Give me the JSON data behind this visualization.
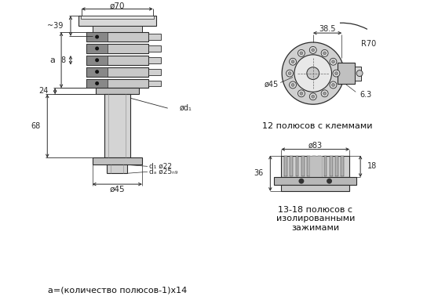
{
  "bg_color": "#ffffff",
  "line_color": "#2a2a2a",
  "dim_color": "#2a2a2a",
  "fig_width": 5.58,
  "fig_height": 3.83,
  "annotations": {
    "bottom_text": "a=(количество полюсов-1)x14",
    "top_right_label1": "12 полюсов с клеммами",
    "bottom_right_label": "13-18 полюсов с\nизолированными\nзажимами"
  },
  "dimensions": {
    "phi70": "ø70",
    "tilde39": "~39",
    "a_label": "a",
    "b_label": "8",
    "dim24": "24",
    "dim68": "68",
    "phi_d1": "ød₁",
    "phi_d1_22": "d₁ ø22",
    "phi_da_25": "dₐ ø25ₙ₉",
    "phi45_bottom": "ø45",
    "phi45_top_right": "ø45",
    "dim38_5": "38.5",
    "R70": "R70",
    "dim6_3": "6.3",
    "phi83": "ø83",
    "dim36": "36",
    "dim18": "18"
  }
}
